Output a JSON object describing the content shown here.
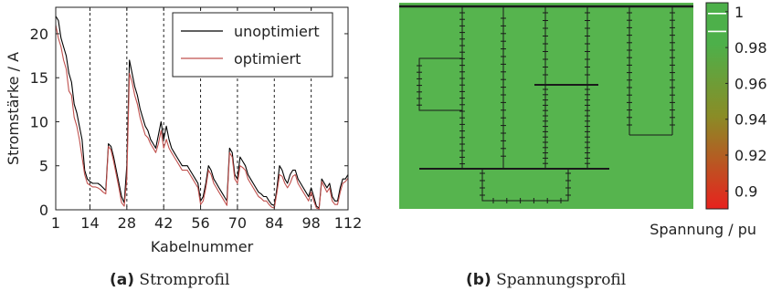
{
  "chart_data": [
    {
      "type": "line",
      "xlabel": "Kabelnummer",
      "ylabel": "Stromstärke / A",
      "xlim": [
        1,
        112
      ],
      "ylim": [
        0,
        23
      ],
      "xticks": [
        1,
        14,
        28,
        42,
        56,
        70,
        84,
        98,
        112
      ],
      "yticks": [
        0,
        5,
        10,
        15,
        20
      ],
      "vlines": [
        14,
        28,
        42,
        56,
        70,
        84,
        98
      ],
      "legend_position": "top-right",
      "series": [
        {
          "name": "unoptimiert",
          "color": "#000000",
          "points": [
            [
              1,
              22
            ],
            [
              2,
              21.5
            ],
            [
              3,
              19.5
            ],
            [
              4,
              18.5
            ],
            [
              5,
              17.5
            ],
            [
              6,
              15.5
            ],
            [
              7,
              14.5
            ],
            [
              8,
              12
            ],
            [
              9,
              11
            ],
            [
              10,
              9.5
            ],
            [
              11,
              8
            ],
            [
              12,
              4.5
            ],
            [
              13,
              3.5
            ],
            [
              14,
              3.2
            ],
            [
              15,
              3
            ],
            [
              16,
              3
            ],
            [
              17,
              3
            ],
            [
              18,
              2.8
            ],
            [
              19,
              2.5
            ],
            [
              20,
              2.2
            ],
            [
              21,
              7.5
            ],
            [
              22,
              7.2
            ],
            [
              23,
              6
            ],
            [
              24,
              4.5
            ],
            [
              25,
              3
            ],
            [
              26,
              1.5
            ],
            [
              27,
              0.8
            ],
            [
              28,
              5
            ],
            [
              29,
              17
            ],
            [
              30,
              15.5
            ],
            [
              31,
              14
            ],
            [
              32,
              13
            ],
            [
              33,
              11.5
            ],
            [
              34,
              10.5
            ],
            [
              35,
              9.5
            ],
            [
              36,
              9
            ],
            [
              37,
              8
            ],
            [
              38,
              7.5
            ],
            [
              39,
              7
            ],
            [
              40,
              8.5
            ],
            [
              41,
              10
            ],
            [
              42,
              8
            ],
            [
              43,
              9.5
            ],
            [
              44,
              8
            ],
            [
              45,
              7
            ],
            [
              46,
              6.5
            ],
            [
              47,
              6
            ],
            [
              48,
              5.5
            ],
            [
              49,
              5
            ],
            [
              50,
              5
            ],
            [
              51,
              5
            ],
            [
              52,
              4.5
            ],
            [
              53,
              4
            ],
            [
              54,
              3.5
            ],
            [
              55,
              3
            ],
            [
              56,
              1
            ],
            [
              57,
              1.5
            ],
            [
              58,
              3
            ],
            [
              59,
              5
            ],
            [
              60,
              4.5
            ],
            [
              61,
              3.5
            ],
            [
              62,
              3
            ],
            [
              63,
              2.5
            ],
            [
              64,
              2
            ],
            [
              65,
              1.5
            ],
            [
              66,
              1
            ],
            [
              67,
              7
            ],
            [
              68,
              6.5
            ],
            [
              69,
              4
            ],
            [
              70,
              3.5
            ],
            [
              71,
              6
            ],
            [
              72,
              5.5
            ],
            [
              73,
              5
            ],
            [
              74,
              4
            ],
            [
              75,
              3.5
            ],
            [
              76,
              3
            ],
            [
              77,
              2.5
            ],
            [
              78,
              2
            ],
            [
              79,
              1.8
            ],
            [
              80,
              1.5
            ],
            [
              81,
              1.5
            ],
            [
              82,
              1
            ],
            [
              83,
              0.6
            ],
            [
              84,
              0.5
            ],
            [
              85,
              2.5
            ],
            [
              86,
              5
            ],
            [
              87,
              4.5
            ],
            [
              88,
              3.5
            ],
            [
              89,
              3
            ],
            [
              90,
              4
            ],
            [
              91,
              4.5
            ],
            [
              92,
              4.5
            ],
            [
              93,
              3.5
            ],
            [
              94,
              3
            ],
            [
              95,
              2.5
            ],
            [
              96,
              2
            ],
            [
              97,
              1.5
            ],
            [
              98,
              2.5
            ],
            [
              99,
              1.5
            ],
            [
              100,
              0.4
            ],
            [
              101,
              0.2
            ],
            [
              102,
              3.5
            ],
            [
              103,
              3
            ],
            [
              104,
              2.5
            ],
            [
              105,
              3
            ],
            [
              106,
              1.5
            ],
            [
              107,
              1
            ],
            [
              108,
              1
            ],
            [
              109,
              2.5
            ],
            [
              110,
              3.5
            ],
            [
              111,
              3.5
            ],
            [
              112,
              4
            ]
          ]
        },
        {
          "name": "optimiert",
          "color": "#c0504d",
          "points": [
            [
              1,
              21
            ],
            [
              2,
              19.5
            ],
            [
              3,
              18.5
            ],
            [
              4,
              17
            ],
            [
              5,
              16
            ],
            [
              6,
              13.5
            ],
            [
              7,
              13
            ],
            [
              8,
              10.5
            ],
            [
              9,
              9.5
            ],
            [
              10,
              8
            ],
            [
              11,
              6
            ],
            [
              12,
              4
            ],
            [
              13,
              3
            ],
            [
              14,
              2.8
            ],
            [
              15,
              2.6
            ],
            [
              16,
              2.6
            ],
            [
              17,
              2.5
            ],
            [
              18,
              2.3
            ],
            [
              19,
              2
            ],
            [
              20,
              1.8
            ],
            [
              21,
              7.2
            ],
            [
              22,
              6.8
            ],
            [
              23,
              5.5
            ],
            [
              24,
              4
            ],
            [
              25,
              2.5
            ],
            [
              26,
              0.8
            ],
            [
              27,
              0.4
            ],
            [
              28,
              3.5
            ],
            [
              29,
              15.5
            ],
            [
              30,
              14.5
            ],
            [
              31,
              13
            ],
            [
              32,
              12
            ],
            [
              33,
              10.5
            ],
            [
              34,
              9.5
            ],
            [
              35,
              8.5
            ],
            [
              36,
              8.2
            ],
            [
              37,
              7.5
            ],
            [
              38,
              7
            ],
            [
              39,
              6.5
            ],
            [
              40,
              7.5
            ],
            [
              41,
              9
            ],
            [
              42,
              7
            ],
            [
              43,
              8
            ],
            [
              44,
              7
            ],
            [
              45,
              6.5
            ],
            [
              46,
              6
            ],
            [
              47,
              5.5
            ],
            [
              48,
              5
            ],
            [
              49,
              4.5
            ],
            [
              50,
              4.5
            ],
            [
              51,
              4.5
            ],
            [
              52,
              4
            ],
            [
              53,
              3.5
            ],
            [
              54,
              3
            ],
            [
              55,
              2.5
            ],
            [
              56,
              0.6
            ],
            [
              57,
              1
            ],
            [
              58,
              2.5
            ],
            [
              59,
              4.5
            ],
            [
              60,
              4
            ],
            [
              61,
              3
            ],
            [
              62,
              2.5
            ],
            [
              63,
              2
            ],
            [
              64,
              1.5
            ],
            [
              65,
              1
            ],
            [
              66,
              0.5
            ],
            [
              67,
              6.5
            ],
            [
              68,
              6
            ],
            [
              69,
              3.5
            ],
            [
              70,
              3
            ],
            [
              71,
              5
            ],
            [
              72,
              4.8
            ],
            [
              73,
              4.5
            ],
            [
              74,
              3.5
            ],
            [
              75,
              3
            ],
            [
              76,
              2.5
            ],
            [
              77,
              2
            ],
            [
              78,
              1.5
            ],
            [
              79,
              1.3
            ],
            [
              80,
              1
            ],
            [
              81,
              1
            ],
            [
              82,
              0.6
            ],
            [
              83,
              0.3
            ],
            [
              84,
              0.2
            ],
            [
              85,
              2
            ],
            [
              86,
              4
            ],
            [
              87,
              3.8
            ],
            [
              88,
              3
            ],
            [
              89,
              2.5
            ],
            [
              90,
              3
            ],
            [
              91,
              3.8
            ],
            [
              92,
              4
            ],
            [
              93,
              3
            ],
            [
              94,
              2.5
            ],
            [
              95,
              2
            ],
            [
              96,
              1.5
            ],
            [
              97,
              1
            ],
            [
              98,
              2
            ],
            [
              99,
              1
            ],
            [
              100,
              0.2
            ],
            [
              101,
              0.1
            ],
            [
              102,
              3.2
            ],
            [
              103,
              2.6
            ],
            [
              104,
              2
            ],
            [
              105,
              2.5
            ],
            [
              106,
              1
            ],
            [
              107,
              0.6
            ],
            [
              108,
              0.6
            ],
            [
              109,
              2
            ],
            [
              110,
              3
            ],
            [
              111,
              3.2
            ],
            [
              112,
              3.6
            ]
          ]
        }
      ]
    },
    {
      "type": "heatmap",
      "colorbar_label": "Spannung / pu",
      "colorbar_range": [
        0.89,
        1.005
      ],
      "colorbar_ticks": [
        0.9,
        0.92,
        0.94,
        0.96,
        0.98,
        1
      ],
      "colorbar_colors": [
        "#e8221e",
        "#8a8c26",
        "#4db04a"
      ],
      "background_value": 0.985,
      "background_color": "#56b44e",
      "marked_levels": [
        0.999,
        0.989
      ]
    }
  ],
  "captions": {
    "a_label": "(a)",
    "a_text": "Stromprofil",
    "b_label": "(b)",
    "b_text": "Spannungsprofil"
  }
}
